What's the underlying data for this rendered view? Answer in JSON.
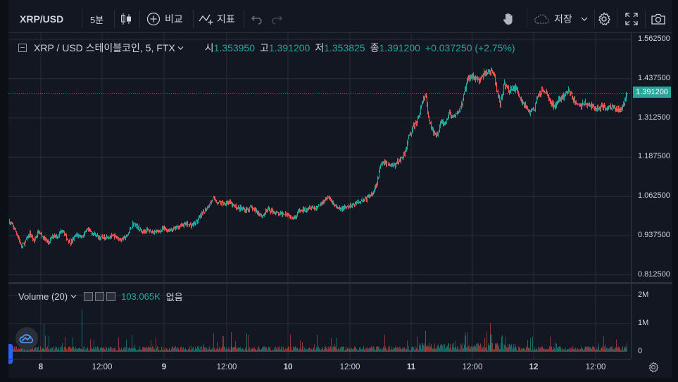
{
  "toolbar": {
    "symbol": "XRP/USD",
    "interval": "5분",
    "compare_label": "비교",
    "indicators_label": "지표",
    "save_label": "저장"
  },
  "legend": {
    "title": "XRP / USD 스테이블코인, 5, FTX",
    "open_label": "시",
    "open": "1.353950",
    "high_label": "고",
    "high": "1.391200",
    "low_label": "저",
    "low": "1.353825",
    "close_label": "종",
    "close": "1.391200",
    "change": "+0.037250 (+2.75%)"
  },
  "volume_legend": {
    "title": "Volume (20)",
    "value": "103.065K",
    "ma_value": "없음"
  },
  "colors": {
    "up": "#26a69a",
    "down": "#ef5350",
    "background": "#131722",
    "grid": "#2a2e39"
  },
  "chart_data": {
    "type": "candlestick",
    "price_axis": {
      "ticks": [
        "1.562500",
        "1.437500",
        "1.312500",
        "1.187500",
        "1.062500",
        "0.937500",
        "0.812500"
      ],
      "range": [
        0.79,
        1.58
      ],
      "last_price": "1.391200"
    },
    "volume_axis": {
      "ticks": [
        "2M",
        "1M",
        "0"
      ],
      "range": [
        0,
        2500000
      ]
    },
    "x_ticks": [
      "8",
      "12:00",
      "9",
      "12:00",
      "10",
      "12:00",
      "11",
      "12:00",
      "12",
      "12:00"
    ],
    "close_path": [
      [
        0,
        0.985
      ],
      [
        8,
        0.96
      ],
      [
        14,
        0.93
      ],
      [
        18,
        0.9
      ],
      [
        24,
        0.92
      ],
      [
        30,
        0.945
      ],
      [
        36,
        0.92
      ],
      [
        42,
        0.95
      ],
      [
        48,
        0.935
      ],
      [
        56,
        0.915
      ],
      [
        64,
        0.94
      ],
      [
        70,
        0.935
      ],
      [
        76,
        0.96
      ],
      [
        82,
        0.93
      ],
      [
        88,
        0.915
      ],
      [
        96,
        0.94
      ],
      [
        104,
        0.935
      ],
      [
        112,
        0.955
      ],
      [
        120,
        0.945
      ],
      [
        130,
        0.93
      ],
      [
        140,
        0.935
      ],
      [
        150,
        0.935
      ],
      [
        160,
        0.925
      ],
      [
        168,
        0.935
      ],
      [
        176,
        0.975
      ],
      [
        182,
        0.97
      ],
      [
        188,
        0.95
      ],
      [
        196,
        0.955
      ],
      [
        204,
        0.95
      ],
      [
        212,
        0.95
      ],
      [
        220,
        0.96
      ],
      [
        228,
        0.955
      ],
      [
        236,
        0.96
      ],
      [
        244,
        0.97
      ],
      [
        252,
        0.975
      ],
      [
        260,
        0.97
      ],
      [
        268,
        0.985
      ],
      [
        276,
        1.01
      ],
      [
        284,
        1.035
      ],
      [
        290,
        1.055
      ],
      [
        296,
        1.045
      ],
      [
        304,
        1.04
      ],
      [
        312,
        1.045
      ],
      [
        320,
        1.03
      ],
      [
        328,
        1.025
      ],
      [
        336,
        1.02
      ],
      [
        344,
        1.025
      ],
      [
        352,
        1.015
      ],
      [
        360,
        1.0
      ],
      [
        368,
        1.02
      ],
      [
        376,
        1.015
      ],
      [
        384,
        1.005
      ],
      [
        392,
        1.01
      ],
      [
        400,
        1.0
      ],
      [
        406,
        0.995
      ],
      [
        412,
        1.015
      ],
      [
        420,
        1.02
      ],
      [
        428,
        1.03
      ],
      [
        436,
        1.025
      ],
      [
        444,
        1.04
      ],
      [
        452,
        1.06
      ],
      [
        458,
        1.05
      ],
      [
        464,
        1.03
      ],
      [
        470,
        1.02
      ],
      [
        476,
        1.025
      ],
      [
        484,
        1.03
      ],
      [
        492,
        1.04
      ],
      [
        500,
        1.05
      ],
      [
        508,
        1.055
      ],
      [
        516,
        1.07
      ],
      [
        522,
        1.1
      ],
      [
        528,
        1.16
      ],
      [
        534,
        1.17
      ],
      [
        540,
        1.165
      ],
      [
        548,
        1.16
      ],
      [
        556,
        1.18
      ],
      [
        562,
        1.2
      ],
      [
        568,
        1.25
      ],
      [
        574,
        1.28
      ],
      [
        580,
        1.3
      ],
      [
        586,
        1.35
      ],
      [
        592,
        1.39
      ],
      [
        596,
        1.31
      ],
      [
        602,
        1.27
      ],
      [
        608,
        1.26
      ],
      [
        614,
        1.3
      ],
      [
        620,
        1.29
      ],
      [
        626,
        1.33
      ],
      [
        632,
        1.31
      ],
      [
        638,
        1.33
      ],
      [
        644,
        1.36
      ],
      [
        650,
        1.42
      ],
      [
        656,
        1.45
      ],
      [
        662,
        1.44
      ],
      [
        668,
        1.43
      ],
      [
        674,
        1.45
      ],
      [
        680,
        1.46
      ],
      [
        686,
        1.46
      ],
      [
        690,
        1.44
      ],
      [
        694,
        1.39
      ],
      [
        698,
        1.36
      ],
      [
        704,
        1.42
      ],
      [
        710,
        1.4
      ],
      [
        716,
        1.41
      ],
      [
        722,
        1.4
      ],
      [
        728,
        1.37
      ],
      [
        734,
        1.35
      ],
      [
        740,
        1.33
      ],
      [
        746,
        1.34
      ],
      [
        752,
        1.38
      ],
      [
        758,
        1.4
      ],
      [
        764,
        1.39
      ],
      [
        770,
        1.36
      ],
      [
        776,
        1.35
      ],
      [
        782,
        1.37
      ],
      [
        788,
        1.38
      ],
      [
        794,
        1.4
      ],
      [
        800,
        1.38
      ],
      [
        806,
        1.36
      ],
      [
        812,
        1.35
      ],
      [
        818,
        1.36
      ],
      [
        824,
        1.35
      ],
      [
        830,
        1.35
      ],
      [
        836,
        1.34
      ],
      [
        842,
        1.35
      ],
      [
        848,
        1.345
      ],
      [
        854,
        1.35
      ],
      [
        860,
        1.345
      ],
      [
        866,
        1.34
      ],
      [
        872,
        1.35
      ],
      [
        876,
        1.37
      ],
      [
        878,
        1.3912
      ]
    ]
  }
}
